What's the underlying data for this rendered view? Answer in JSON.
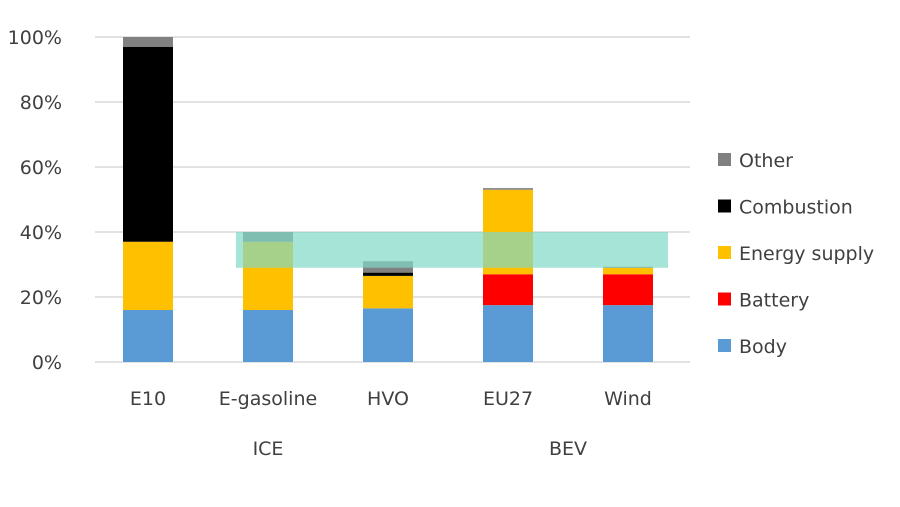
{
  "chart_data": {
    "type": "bar",
    "stacked": true,
    "title": "",
    "xlabel": "",
    "ylabel": "",
    "ylim": [
      0,
      100
    ],
    "yticks": [
      "0%",
      "20%",
      "40%",
      "60%",
      "80%",
      "100%"
    ],
    "grid": true,
    "legend_position": "right",
    "categories": [
      "E10",
      "E-gasoline",
      "HVO",
      "EU27",
      "Wind"
    ],
    "groups": [
      {
        "label": "ICE",
        "categories": [
          "E10",
          "E-gasoline",
          "HVO"
        ]
      },
      {
        "label": "BEV",
        "categories": [
          "EU27",
          "Wind"
        ]
      }
    ],
    "series": [
      {
        "name": "Body",
        "color": "#5B9BD5",
        "values": [
          16,
          16,
          16.5,
          17.5,
          17.5
        ]
      },
      {
        "name": "Battery",
        "color": "#FF0000",
        "values": [
          0,
          0,
          0,
          9.5,
          9.5
        ]
      },
      {
        "name": "Energy supply",
        "color": "#FFC000",
        "values": [
          21,
          21,
          10,
          26,
          2
        ]
      },
      {
        "name": "Combustion",
        "color": "#000000",
        "values": [
          60,
          0,
          1,
          0,
          0
        ]
      },
      {
        "name": "Other",
        "color": "#808080",
        "values": [
          3,
          3,
          3.5,
          0.5,
          0.3
        ]
      }
    ],
    "highlight_band": {
      "from": 29,
      "to": 40,
      "color": "#7FD8C4",
      "categories": [
        "E-gasoline",
        "HVO",
        "EU27",
        "Wind"
      ]
    }
  }
}
